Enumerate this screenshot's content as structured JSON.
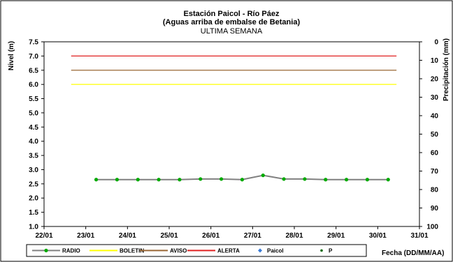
{
  "chart_data": {
    "type": "line",
    "title": "Estación Paicol - Río Páez",
    "subtitle": "(Aguas arriba de embalse de Betania)",
    "subtitle2": "ULTIMA SEMANA",
    "ylabel": "Nivel (m)",
    "y2label": "Precipitación (mm)",
    "xlabel": "Fecha (DD/MM/AA)",
    "ylim": [
      1.0,
      7.5
    ],
    "y2lim": [
      0,
      100
    ],
    "y2_inverted": true,
    "x_range": [
      22,
      31
    ],
    "x_ticks": [
      "22/01",
      "23/01",
      "24/01",
      "25/01",
      "26/01",
      "27/01",
      "28/01",
      "29/01",
      "30/01",
      "31/01"
    ],
    "y_ticks": [
      "1.0",
      "1.5",
      "2.0",
      "2.5",
      "3.0",
      "3.5",
      "4.0",
      "4.5",
      "5.0",
      "5.5",
      "6.0",
      "6.5",
      "7.0",
      "7.5"
    ],
    "y2_ticks": [
      "0",
      "10",
      "20",
      "30",
      "40",
      "50",
      "60",
      "70",
      "80",
      "90",
      "100"
    ],
    "grid": false,
    "legend_position": "bottom",
    "thresholds": [
      {
        "name": "BOLETIN",
        "value": 6.0,
        "color": "#ffff00",
        "x": [
          22.65,
          30.45
        ]
      },
      {
        "name": "AVISO",
        "value": 6.5,
        "color": "#996633",
        "x": [
          22.65,
          30.45
        ]
      },
      {
        "name": "ALERTA",
        "value": 7.0,
        "color": "#e02020",
        "x": [
          22.65,
          30.45
        ]
      }
    ],
    "series": [
      {
        "name": "RADIO",
        "color": "#808080",
        "marker_color": "#00aa00",
        "x": [
          23.25,
          23.75,
          24.25,
          24.75,
          25.25,
          25.75,
          26.25,
          26.75,
          27.25,
          27.75,
          28.25,
          28.75,
          29.25,
          29.75,
          30.25
        ],
        "values": [
          2.65,
          2.65,
          2.65,
          2.65,
          2.65,
          2.67,
          2.67,
          2.65,
          2.8,
          2.67,
          2.67,
          2.65,
          2.65,
          2.65,
          2.65
        ]
      }
    ],
    "legend": [
      {
        "name": "RADIO",
        "style": "line-marker",
        "color": "#808080",
        "marker_color": "#00aa00"
      },
      {
        "name": "BOLETIN",
        "style": "line",
        "color": "#ffff00"
      },
      {
        "name": "AVISO",
        "style": "line",
        "color": "#996633"
      },
      {
        "name": "ALERTA",
        "style": "line",
        "color": "#e02020"
      },
      {
        "name": "Paicol",
        "style": "marker",
        "color": "#3a7bd5"
      },
      {
        "name": "P",
        "style": "marker",
        "color": "#006600"
      }
    ]
  }
}
